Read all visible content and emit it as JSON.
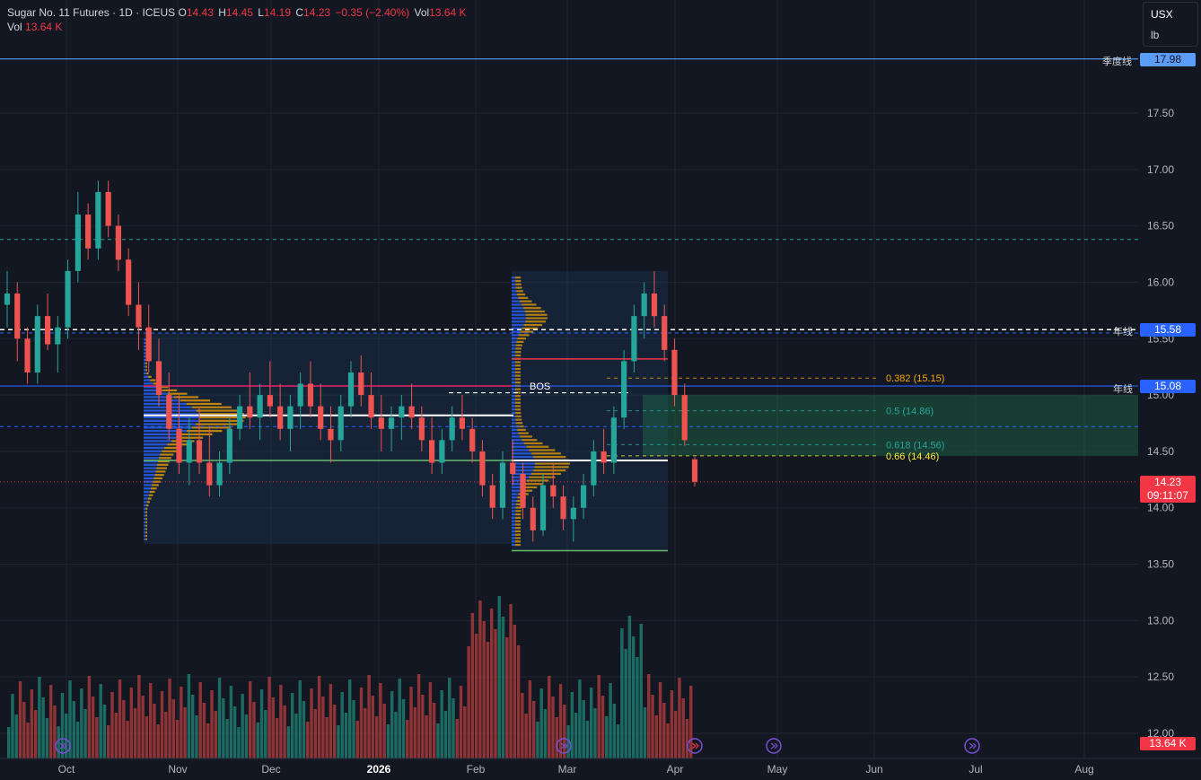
{
  "header": {
    "symbol": "Sugar No. 11 Futures · 1D · ICEUS",
    "open_label": "O",
    "open": "14.43",
    "high_label": "H",
    "high": "14.45",
    "low_label": "L",
    "low": "14.19",
    "close_label": "C",
    "close": "14.23",
    "change": "−0.35 (−2.40%)",
    "vol_label": "Vol",
    "vol": "13.64 K",
    "vol_row_label": "Vol",
    "vol_row_value": "13.64 K"
  },
  "unit_menu": {
    "currency": "USX",
    "unit": "lb"
  },
  "colors": {
    "up": "#26a69a",
    "down": "#ef5350",
    "bg": "#131722",
    "grid": "#1f2430",
    "blue_line": "#2962ff",
    "accent_orange": "#f7a600",
    "green_zone": "#1b5e3b"
  },
  "price_badges": {
    "quarter_line_value": "17.98",
    "quarter_line_label": "季度线",
    "year_line_top_value": "15.58",
    "year_line_top_label": "年线",
    "year_line_mid_value": "15.08",
    "year_line_mid_label": "年线",
    "last_price": "14.23",
    "countdown": "09:11:07",
    "volume_value": "13.64 K"
  },
  "annotations": {
    "bos": "BOS",
    "fib_0382": "0.382 (15.15)",
    "fib_05": "0.5 (14.86)",
    "fib_0618": "0.618 (14.56)",
    "fib_066": "0.66 (14.46)"
  },
  "chart_data": {
    "type": "candlestick",
    "title": "Sugar No. 11 Futures · 1D · ICEUS",
    "y_axis": {
      "ticks": [
        "17.50",
        "17.00",
        "16.50",
        "16.00",
        "15.50",
        "15.00",
        "14.50",
        "14.00",
        "13.50",
        "13.00",
        "12.50",
        "12.00"
      ],
      "range": [
        11.9,
        18.4
      ]
    },
    "x_axis": {
      "ticks": [
        "Oct",
        "Nov",
        "Dec",
        "2026",
        "Feb",
        "Mar",
        "Apr",
        "May",
        "Jun",
        "Jul",
        "Aug"
      ]
    },
    "grid": true,
    "candles": [
      [
        15.8,
        16.1,
        15.6,
        15.9
      ],
      [
        15.9,
        16.0,
        15.3,
        15.5
      ],
      [
        15.5,
        15.6,
        15.1,
        15.2
      ],
      [
        15.2,
        15.8,
        15.1,
        15.7
      ],
      [
        15.7,
        15.9,
        15.4,
        15.45
      ],
      [
        15.45,
        15.7,
        15.2,
        15.6
      ],
      [
        15.6,
        16.2,
        15.5,
        16.1
      ],
      [
        16.1,
        16.8,
        16.0,
        16.6
      ],
      [
        16.6,
        16.7,
        16.2,
        16.3
      ],
      [
        16.3,
        16.9,
        16.2,
        16.8
      ],
      [
        16.8,
        16.9,
        16.4,
        16.5
      ],
      [
        16.5,
        16.6,
        16.1,
        16.2
      ],
      [
        16.2,
        16.3,
        15.7,
        15.8
      ],
      [
        15.8,
        16.0,
        15.4,
        15.6
      ],
      [
        15.6,
        15.8,
        15.2,
        15.3
      ],
      [
        15.3,
        15.5,
        14.9,
        15.0
      ],
      [
        15.0,
        15.2,
        14.6,
        14.7
      ],
      [
        14.7,
        15.0,
        14.3,
        14.4
      ],
      [
        14.4,
        14.8,
        14.2,
        14.6
      ],
      [
        14.6,
        14.9,
        14.3,
        14.4
      ],
      [
        14.4,
        14.7,
        14.1,
        14.2
      ],
      [
        14.2,
        14.5,
        14.1,
        14.4
      ],
      [
        14.4,
        14.8,
        14.3,
        14.7
      ],
      [
        14.7,
        15.0,
        14.6,
        14.9
      ],
      [
        14.9,
        15.2,
        14.7,
        14.8
      ],
      [
        14.8,
        15.1,
        14.6,
        15.0
      ],
      [
        15.0,
        15.3,
        14.8,
        14.9
      ],
      [
        14.9,
        15.1,
        14.6,
        14.7
      ],
      [
        14.7,
        15.0,
        14.5,
        14.9
      ],
      [
        14.9,
        15.2,
        14.7,
        15.1
      ],
      [
        15.1,
        15.3,
        14.8,
        14.9
      ],
      [
        14.9,
        15.1,
        14.6,
        14.7
      ],
      [
        14.7,
        14.9,
        14.4,
        14.6
      ],
      [
        14.6,
        15.0,
        14.5,
        14.9
      ],
      [
        14.9,
        15.3,
        14.8,
        15.2
      ],
      [
        15.2,
        15.35,
        14.9,
        15.0
      ],
      [
        15.0,
        15.2,
        14.7,
        14.8
      ],
      [
        14.8,
        15.0,
        14.5,
        14.7
      ],
      [
        14.7,
        14.9,
        14.5,
        14.8
      ],
      [
        14.8,
        15.0,
        14.6,
        14.9
      ],
      [
        14.9,
        15.1,
        14.7,
        14.8
      ],
      [
        14.8,
        14.9,
        14.5,
        14.6
      ],
      [
        14.6,
        14.8,
        14.3,
        14.4
      ],
      [
        14.4,
        14.7,
        14.3,
        14.6
      ],
      [
        14.6,
        14.9,
        14.5,
        14.8
      ],
      [
        14.8,
        15.0,
        14.6,
        14.7
      ],
      [
        14.7,
        14.8,
        14.4,
        14.5
      ],
      [
        14.5,
        14.6,
        14.1,
        14.2
      ],
      [
        14.2,
        14.3,
        13.9,
        14.0
      ],
      [
        14.0,
        14.5,
        13.9,
        14.4
      ],
      [
        14.4,
        14.6,
        14.2,
        14.3
      ],
      [
        14.3,
        14.4,
        13.9,
        14.0
      ],
      [
        14.0,
        14.1,
        13.7,
        13.8
      ],
      [
        13.8,
        14.3,
        13.75,
        14.2
      ],
      [
        14.2,
        14.4,
        14.0,
        14.1
      ],
      [
        14.1,
        14.2,
        13.8,
        13.9
      ],
      [
        13.9,
        14.1,
        13.7,
        14.0
      ],
      [
        14.0,
        14.3,
        13.9,
        14.2
      ],
      [
        14.2,
        14.6,
        14.1,
        14.5
      ],
      [
        14.5,
        14.7,
        14.3,
        14.4
      ],
      [
        14.4,
        14.9,
        14.3,
        14.8
      ],
      [
        14.8,
        15.4,
        14.7,
        15.3
      ],
      [
        15.3,
        15.8,
        15.2,
        15.7
      ],
      [
        15.7,
        16.0,
        15.5,
        15.9
      ],
      [
        15.9,
        16.1,
        15.6,
        15.7
      ],
      [
        15.7,
        15.8,
        15.3,
        15.4
      ],
      [
        15.4,
        15.5,
        14.9,
        15.0
      ],
      [
        15.0,
        15.1,
        14.55,
        14.6
      ],
      [
        14.43,
        14.45,
        14.19,
        14.23
      ]
    ],
    "volume_series_name": "Vol",
    "last_close": 14.23,
    "horizontal_levels": [
      {
        "label": "季度线",
        "value": 17.98
      },
      {
        "label": "年线",
        "value": 15.58
      },
      {
        "label": "年线",
        "value": 15.08
      }
    ],
    "fibonacci": [
      {
        "ratio": 0.382,
        "value": 15.15
      },
      {
        "ratio": 0.5,
        "value": 14.86
      },
      {
        "ratio": 0.618,
        "value": 14.56
      },
      {
        "ratio": 0.66,
        "value": 14.46
      }
    ]
  }
}
